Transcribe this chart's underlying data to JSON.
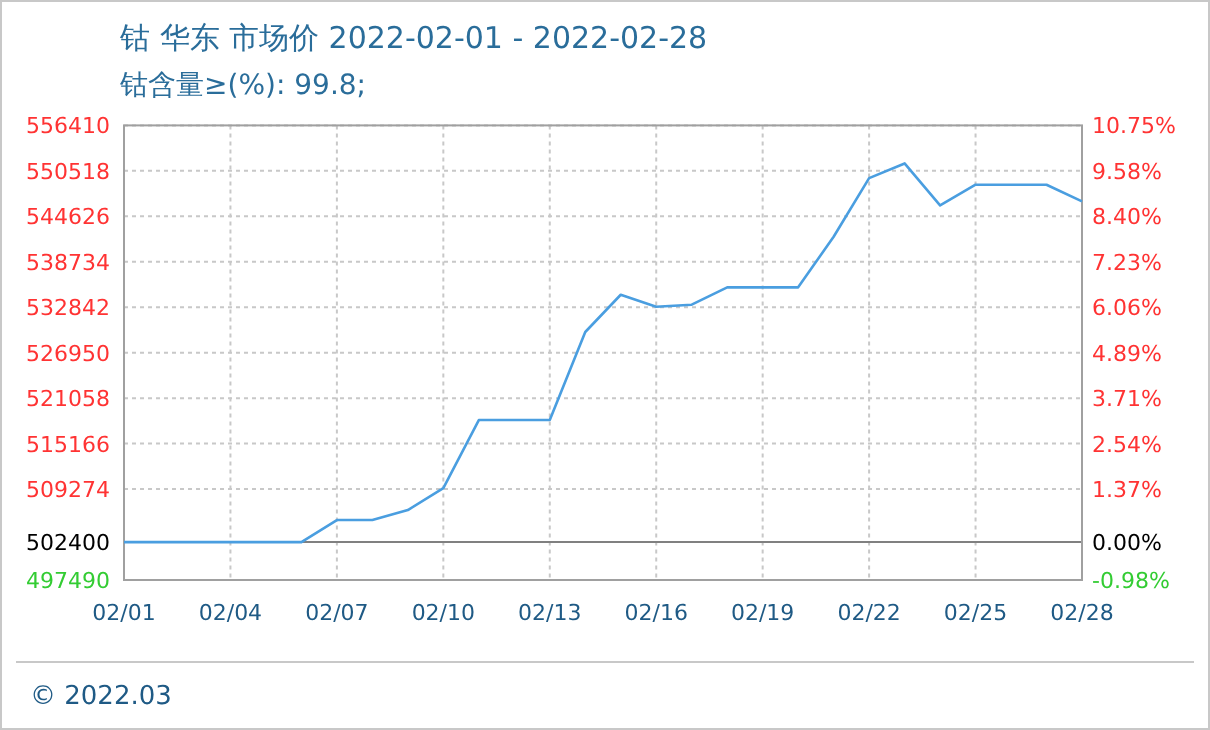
{
  "chart_data": {
    "type": "line",
    "title": "钴 华东 市场价 2022-02-01 - 2022-02-28",
    "subtitle": "钴含量≥(%): 99.8;",
    "annotations": [
      "© 2022.03"
    ],
    "x": [
      "2022-02-01",
      "2022-02-02",
      "2022-02-03",
      "2022-02-04",
      "2022-02-05",
      "2022-02-06",
      "2022-02-07",
      "2022-02-08",
      "2022-02-09",
      "2022-02-10",
      "2022-02-11",
      "2022-02-12",
      "2022-02-13",
      "2022-02-14",
      "2022-02-15",
      "2022-02-16",
      "2022-02-17",
      "2022-02-18",
      "2022-02-19",
      "2022-02-20",
      "2022-02-21",
      "2022-02-22",
      "2022-02-23",
      "2022-02-24",
      "2022-02-25",
      "2022-02-26",
      "2022-02-27",
      "2022-02-28"
    ],
    "series": [
      {
        "color": "#4a9ee0",
        "values": [
          502400,
          502400,
          502400,
          502400,
          502400,
          502400,
          505260,
          505260,
          506560,
          509400,
          518220,
          518220,
          518220,
          529630,
          534460,
          532910,
          533170,
          535420,
          535420,
          535420,
          541980,
          549580,
          551480,
          546040,
          548720,
          548720,
          548720,
          546560
        ]
      }
    ],
    "xlim": [
      "2022-02-01",
      "2022-02-28"
    ],
    "xticks": [
      {
        "value": "2022-02-01",
        "label": "02/01"
      },
      {
        "value": "2022-02-04",
        "label": "02/04"
      },
      {
        "value": "2022-02-07",
        "label": "02/07"
      },
      {
        "value": "2022-02-10",
        "label": "02/10"
      },
      {
        "value": "2022-02-13",
        "label": "02/13"
      },
      {
        "value": "2022-02-16",
        "label": "02/16"
      },
      {
        "value": "2022-02-19",
        "label": "02/19"
      },
      {
        "value": "2022-02-22",
        "label": "02/22"
      },
      {
        "value": "2022-02-25",
        "label": "02/25"
      },
      {
        "value": "2022-02-28",
        "label": "02/28"
      }
    ],
    "ylim": [
      497490,
      556410
    ],
    "yticks": [
      497490,
      502400,
      509274,
      515166,
      521058,
      526950,
      532842,
      538734,
      544626,
      550518,
      556410
    ],
    "y2lim": [
      -0.98,
      10.75
    ],
    "y2ticks": [
      {
        "value": -0.98,
        "label": "-0.98%"
      },
      {
        "value": 0,
        "label": "0.00%"
      },
      {
        "value": 1.37,
        "label": "1.37%"
      },
      {
        "value": 2.54,
        "label": "2.54%"
      },
      {
        "value": 3.71,
        "label": "3.71%"
      },
      {
        "value": 4.89,
        "label": "4.89%"
      },
      {
        "value": 6.06,
        "label": "6.06%"
      },
      {
        "value": 7.23,
        "label": "7.23%"
      },
      {
        "value": 8.4,
        "label": "8.40%"
      },
      {
        "value": 9.58,
        "label": "9.58%"
      },
      {
        "value": 10.75,
        "label": "10.75%"
      }
    ],
    "grid": true,
    "ref_lines": [
      {
        "axis": "y",
        "value": 502400,
        "color": "#808080"
      }
    ]
  }
}
